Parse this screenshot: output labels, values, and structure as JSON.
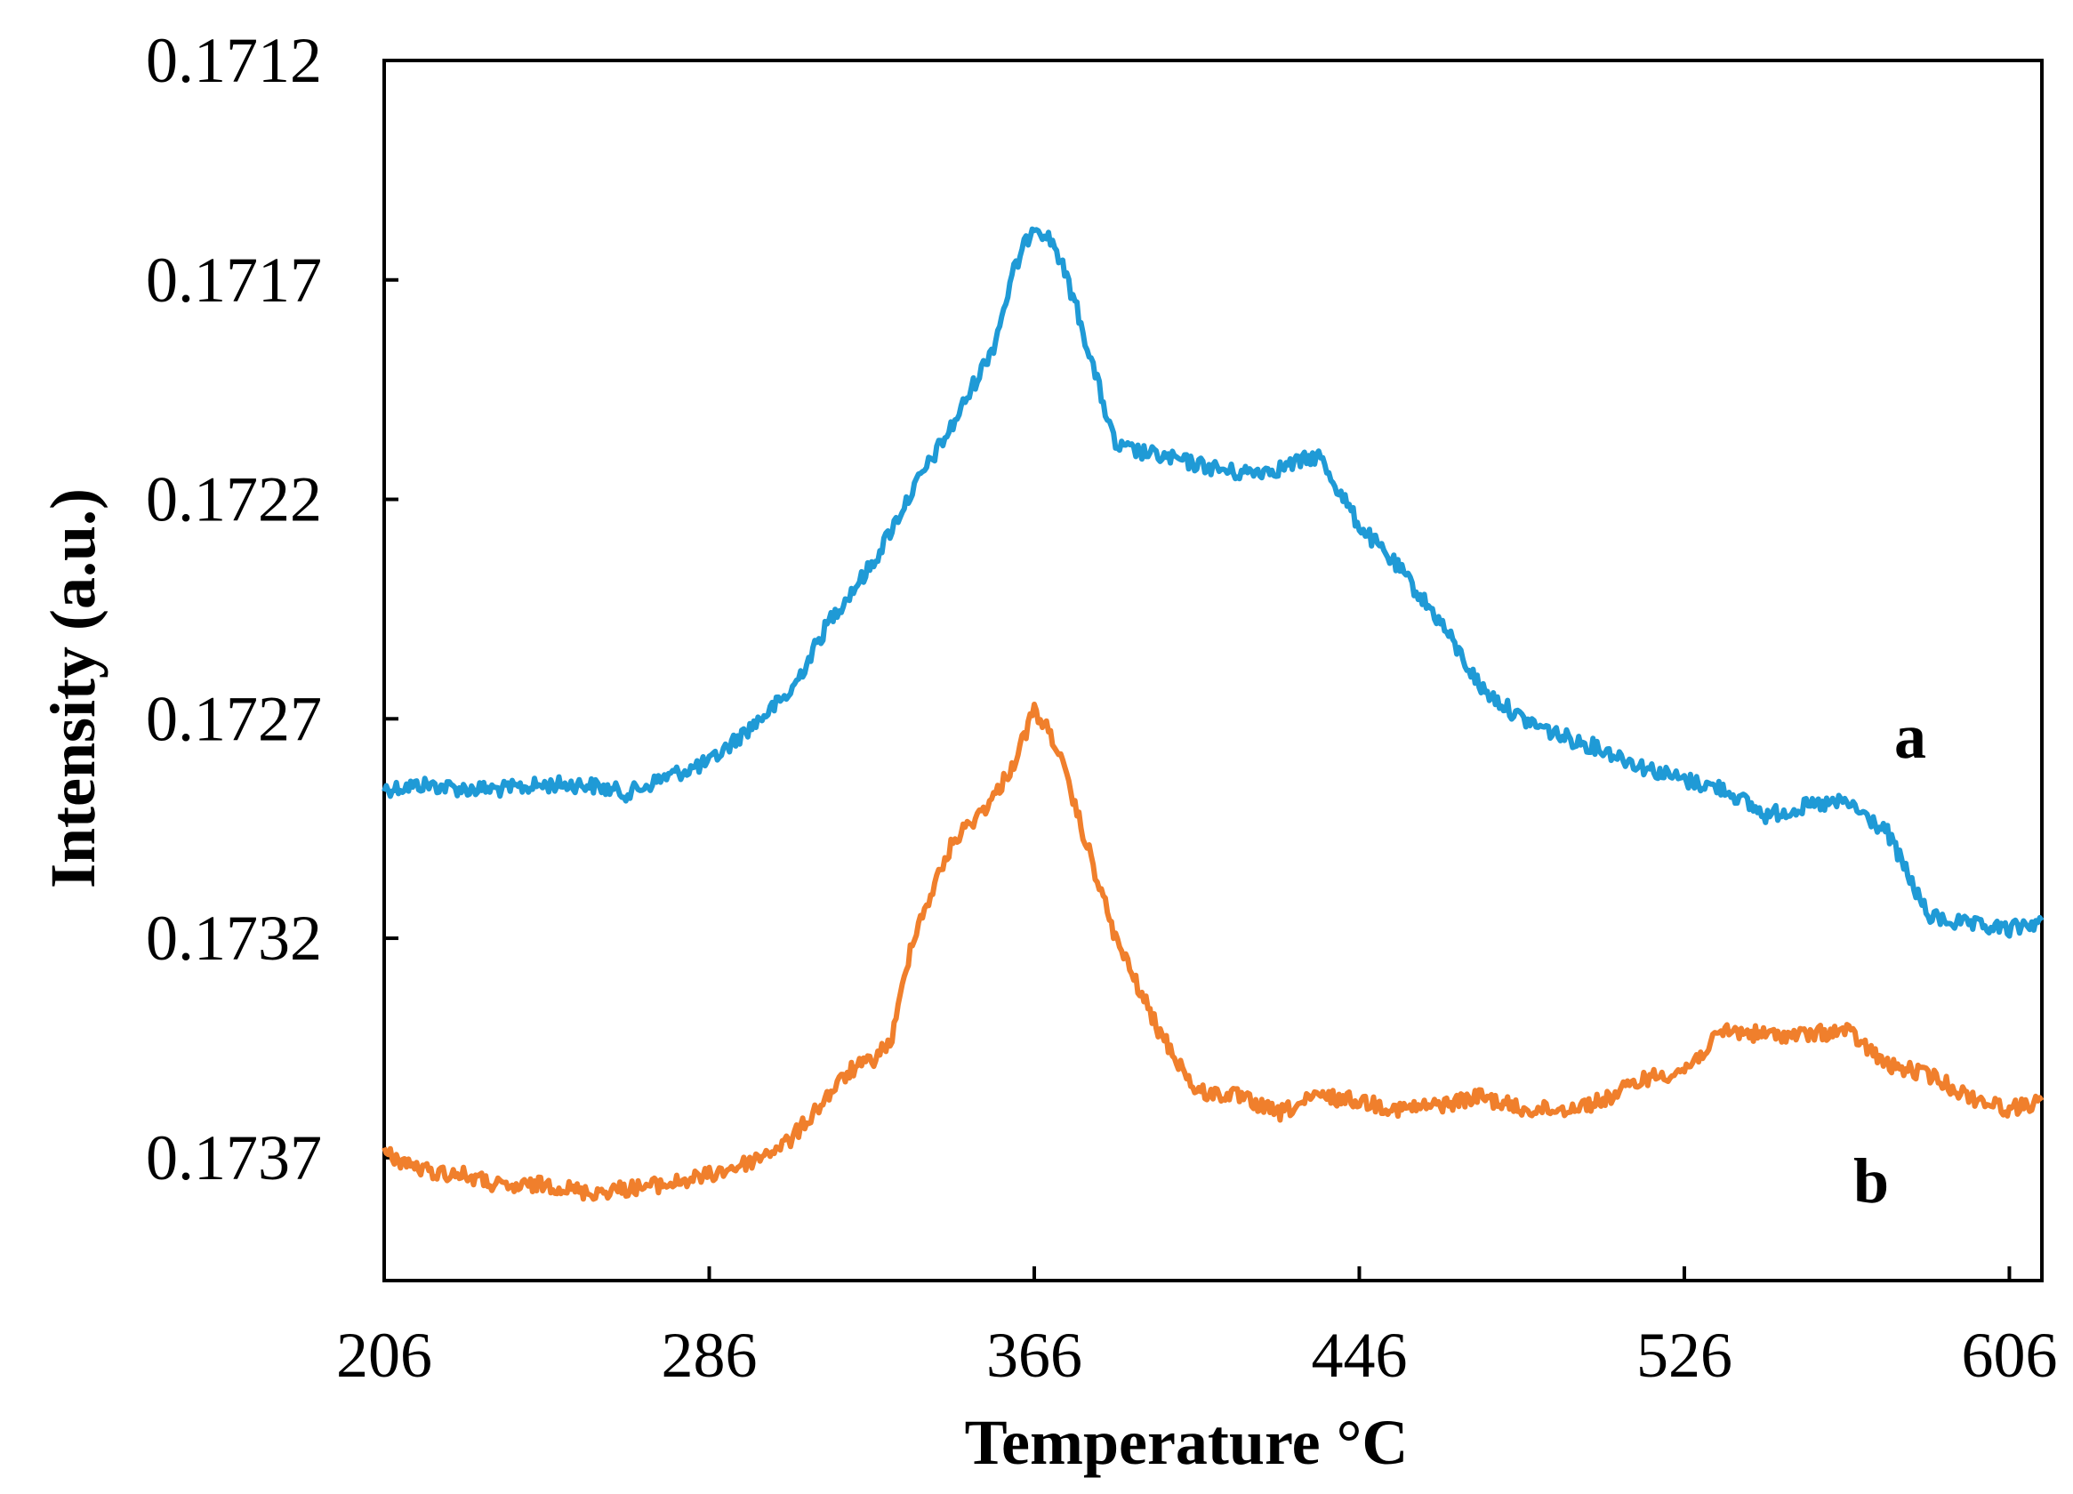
{
  "chart_data": {
    "type": "line",
    "title": "",
    "xlabel": "Temperature °C",
    "ylabel": "Intensity (a.u.)",
    "xlim": [
      206,
      614
    ],
    "ylim": [
      0.1712,
      0.17398
    ],
    "y_inverted": true,
    "x_ticks": [
      206,
      286,
      366,
      446,
      526,
      606
    ],
    "x_tick_labels": [
      "206",
      "286",
      "366",
      "446",
      "526",
      "606"
    ],
    "y_ticks": [
      0.1712,
      0.1717,
      0.1722,
      0.1727,
      0.1732,
      0.1737
    ],
    "y_tick_labels": [
      "0.1712",
      "0.1717",
      "0.1722",
      "0.1727",
      "0.1732",
      "0.1737"
    ],
    "grid": false,
    "series": [
      {
        "name": "a",
        "color": "#1f9ad6",
        "x": [
          206,
          216,
          226,
          236,
          246,
          256,
          266,
          276,
          286,
          296,
          306,
          316,
          326,
          336,
          346,
          356,
          361,
          366,
          371,
          376,
          386,
          396,
          406,
          416,
          426,
          436,
          446,
          456,
          466,
          476,
          486,
          496,
          506,
          516,
          526,
          536,
          546,
          556,
          566,
          576,
          586,
          596,
          606,
          614
        ],
        "y": [
          0.17286,
          0.17285,
          0.17286,
          0.17286,
          0.17285,
          0.17285,
          0.17287,
          0.17283,
          0.1728,
          0.17272,
          0.17264,
          0.17247,
          0.17235,
          0.17218,
          0.17203,
          0.17185,
          0.17168,
          0.17157,
          0.17162,
          0.17175,
          0.17208,
          0.1721,
          0.17212,
          0.17214,
          0.17213,
          0.1721,
          0.17226,
          0.17236,
          0.17248,
          0.17263,
          0.1727,
          0.17274,
          0.17277,
          0.17281,
          0.17284,
          0.17286,
          0.17292,
          0.1729,
          0.17289,
          0.17296,
          0.17315,
          0.17317,
          0.17318,
          0.17316
        ]
      },
      {
        "name": "b",
        "color": "#f07f2c",
        "x": [
          206,
          216,
          226,
          236,
          246,
          256,
          266,
          276,
          286,
          296,
          306,
          316,
          321,
          326,
          331,
          336,
          346,
          356,
          361,
          366,
          371,
          376,
          386,
          396,
          406,
          416,
          426,
          436,
          446,
          456,
          466,
          476,
          486,
          496,
          506,
          516,
          526,
          536,
          546,
          556,
          566,
          576,
          586,
          596,
          606,
          614
        ],
        "y": [
          0.17369,
          0.17373,
          0.17374,
          0.17377,
          0.17376,
          0.17378,
          0.17377,
          0.17376,
          0.17374,
          0.17371,
          0.17366,
          0.17355,
          0.1735,
          0.17348,
          0.17343,
          0.1732,
          0.17298,
          0.17288,
          0.1728,
          0.17268,
          0.17275,
          0.1729,
          0.1732,
          0.1734,
          0.17355,
          0.17356,
          0.1736,
          0.17356,
          0.17357,
          0.17359,
          0.17358,
          0.17356,
          0.17359,
          0.17359,
          0.17357,
          0.17352,
          0.1735,
          0.17341,
          0.17342,
          0.17342,
          0.17341,
          0.17349,
          0.17351,
          0.17356,
          0.17359,
          0.17357
        ]
      }
    ]
  }
}
